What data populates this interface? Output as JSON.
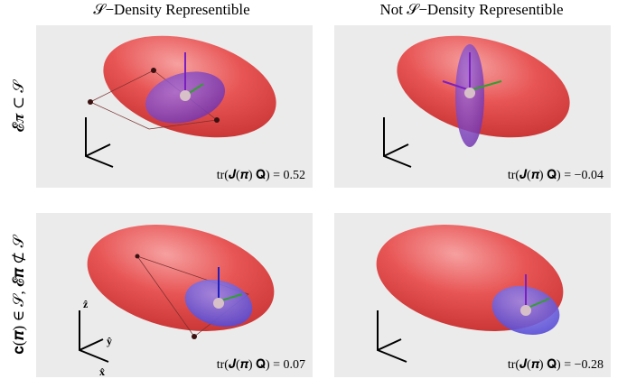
{
  "columns": [
    "𝒮−Density Representible",
    "Not 𝒮−Density Representible"
  ],
  "rows": [
    "𝓔𝝅 ⊂ 𝒮",
    "𝐜(𝝅) ∈ 𝒮,  𝓔𝝅 ⊄ 𝒮"
  ],
  "panels": [
    {
      "annotation": "tr(𝑱(𝝅) 𝐐) = 0.52"
    },
    {
      "annotation": "tr(𝑱(𝝅) 𝐐) = −0.04"
    },
    {
      "annotation": "tr(𝑱(𝝅) 𝐐) = 0.07"
    },
    {
      "annotation": "tr(𝑱(𝝅) 𝐐) = −0.28"
    }
  ],
  "axis_labels": {
    "z": "ẑ",
    "y": "ŷ",
    "x": "x̂"
  }
}
